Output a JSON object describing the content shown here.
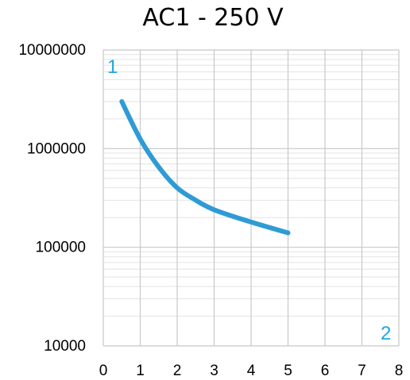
{
  "chart_data": {
    "type": "line",
    "title": "AC1 - 250 V",
    "xlabel": "",
    "ylabel": "",
    "xlim": [
      0,
      8
    ],
    "ylim": [
      10000,
      10000000
    ],
    "yscale": "log",
    "grid": true,
    "x_ticks": [
      "0",
      "1",
      "2",
      "3",
      "4",
      "5",
      "6",
      "7",
      "8"
    ],
    "y_ticks": [
      "10000",
      "100000",
      "1000000",
      "10000000"
    ],
    "corner_labels": {
      "top_left": "1",
      "bottom_right": "2"
    },
    "colors": {
      "line": "#2e9bd5",
      "corner": "#1ea7e0",
      "grid": "#c8c8c8",
      "minor_grid": "#e3e3e3"
    },
    "series": [
      {
        "x": [
          0.5,
          1.0,
          1.5,
          2.0,
          2.5,
          3.0,
          4.0,
          5.0
        ],
        "y": [
          3000000,
          1250000,
          650000,
          400000,
          300000,
          240000,
          180000,
          140000
        ]
      }
    ]
  }
}
